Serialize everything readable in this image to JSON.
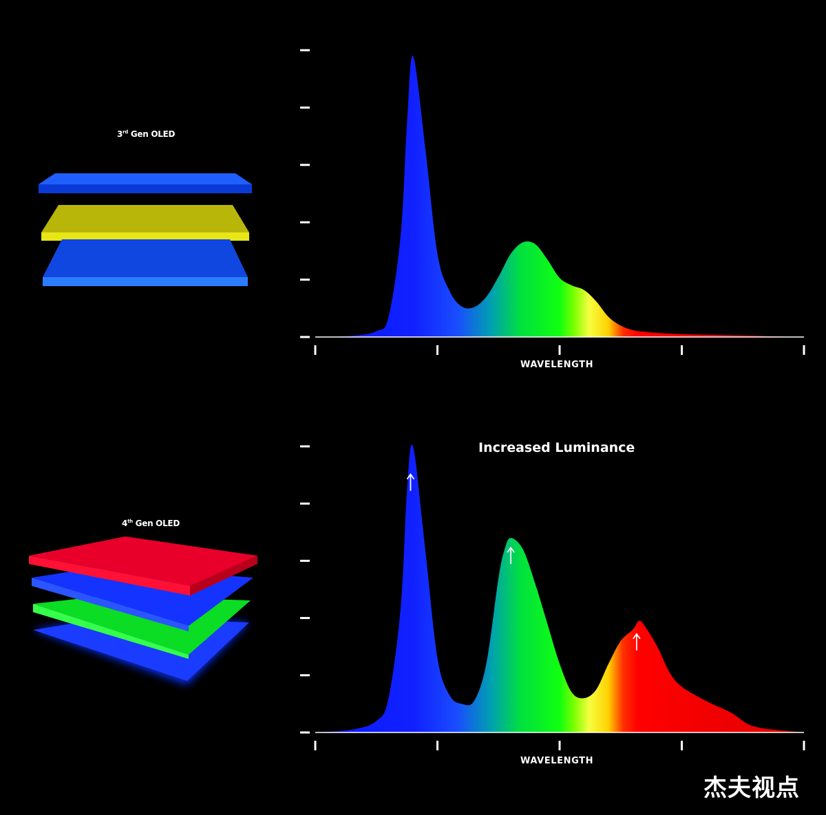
{
  "left_panel": {
    "stack_3rd": {
      "label_base": "3",
      "label_sup": "rd",
      "label_rest": " Gen OLED",
      "layers": [
        "blue",
        "yellow",
        "blue"
      ]
    },
    "stack_4th": {
      "label_base": "4",
      "label_sup": "th",
      "label_rest": " Gen OLED",
      "layers": [
        "red",
        "blue",
        "green",
        "blue"
      ]
    }
  },
  "colors": {
    "blue": "#0a2cff",
    "yellow": "#e3e10a",
    "green": "#0bff22",
    "red": "#ff0000",
    "background": "#000000"
  },
  "chart_data": [
    {
      "type": "area",
      "title": "",
      "xlabel": "WAVELENGTH",
      "ylabel": "",
      "xlim": [
        0,
        4
      ],
      "ylim": [
        0,
        5
      ],
      "x_ticks": 5,
      "y_ticks": 6,
      "tick_labels_shown": false,
      "series": [
        {
          "x": [
            0,
            0.3,
            0.5,
            0.6,
            0.7,
            0.75,
            0.8,
            0.9,
            1.0,
            1.1,
            1.2,
            1.3,
            1.4,
            1.5,
            1.6,
            1.7,
            1.8,
            1.9,
            2.0,
            2.1,
            2.2,
            2.3,
            2.4,
            2.5,
            2.6,
            2.7,
            2.8,
            3.0,
            3.4,
            4.0
          ],
          "values": [
            0,
            0.02,
            0.1,
            0.35,
            1.8,
            3.7,
            4.9,
            3.3,
            1.45,
            0.8,
            0.53,
            0.52,
            0.7,
            1.05,
            1.45,
            1.65,
            1.62,
            1.35,
            1.03,
            0.9,
            0.82,
            0.62,
            0.35,
            0.2,
            0.12,
            0.09,
            0.07,
            0.05,
            0.03,
            0
          ]
        }
      ]
    },
    {
      "type": "area",
      "title": "",
      "xlabel": "WAVELENGTH",
      "ylabel": "",
      "xlim": [
        0,
        4
      ],
      "ylim": [
        0,
        5
      ],
      "x_ticks": 5,
      "y_ticks": 6,
      "tick_labels_shown": false,
      "annotation": "Increased Luminance",
      "peak_arrows_x": [
        0.78,
        1.6,
        2.63
      ],
      "series": [
        {
          "x": [
            0,
            0.3,
            0.5,
            0.6,
            0.7,
            0.75,
            0.8,
            0.9,
            1.0,
            1.1,
            1.2,
            1.3,
            1.4,
            1.5,
            1.55,
            1.6,
            1.7,
            1.8,
            1.9,
            2.0,
            2.1,
            2.2,
            2.3,
            2.4,
            2.5,
            2.6,
            2.65,
            2.7,
            2.8,
            2.9,
            3.0,
            3.2,
            3.4,
            3.6,
            4.0
          ],
          "values": [
            0,
            0.05,
            0.2,
            0.6,
            2.2,
            4.2,
            5.0,
            3.2,
            1.3,
            0.65,
            0.5,
            0.55,
            1.2,
            2.7,
            3.2,
            3.4,
            3.2,
            2.6,
            1.9,
            1.2,
            0.7,
            0.6,
            0.75,
            1.2,
            1.6,
            1.8,
            1.95,
            1.85,
            1.5,
            1.05,
            0.8,
            0.55,
            0.35,
            0.1,
            0
          ]
        }
      ]
    }
  ],
  "watermark": "杰夫视点"
}
